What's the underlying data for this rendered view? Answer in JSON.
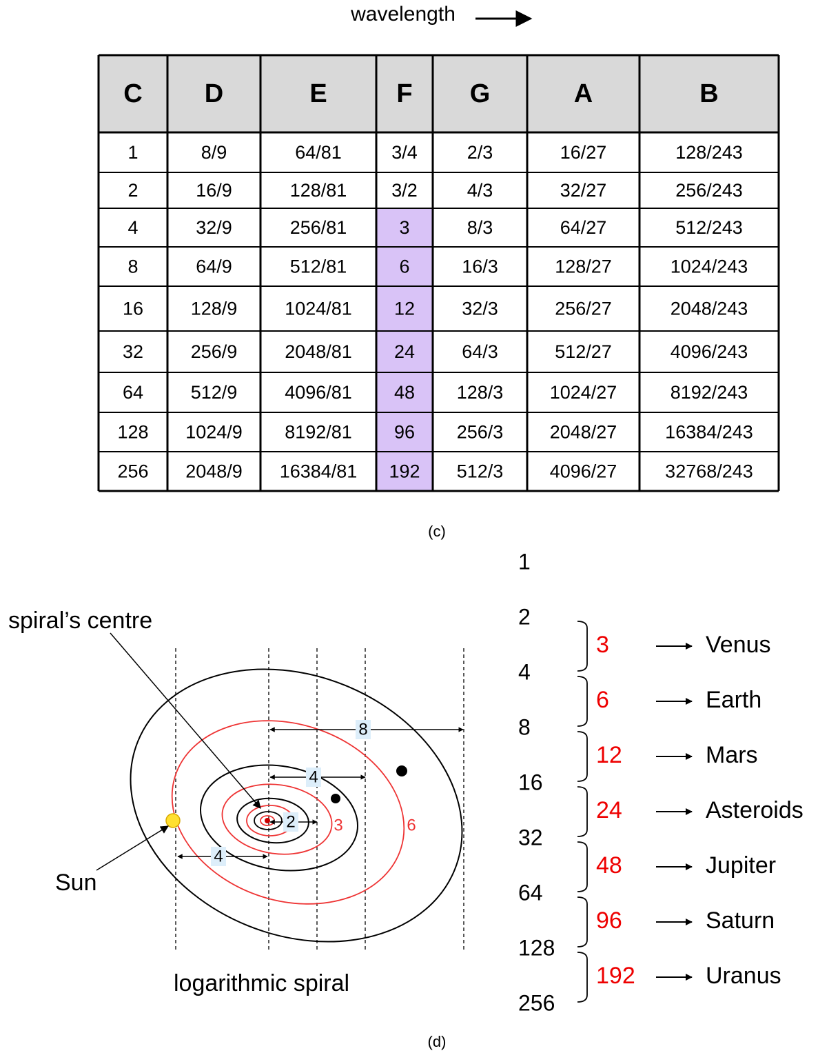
{
  "wavelength_label": "wavelength",
  "table": {
    "header": [
      "C",
      "D",
      "E",
      "F",
      "G",
      "A",
      "B"
    ],
    "rows": [
      [
        "1",
        "8/9",
        "64/81",
        "3/4",
        "2/3",
        "16/27",
        "128/243"
      ],
      [
        "2",
        "16/9",
        "128/81",
        "3/2",
        "4/3",
        "32/27",
        "256/243"
      ],
      [
        "4",
        "32/9",
        "256/81",
        "3",
        "8/3",
        "64/27",
        "512/243"
      ],
      [
        "8",
        "64/9",
        "512/81",
        "6",
        "16/3",
        "128/27",
        "1024/243"
      ],
      [
        "16",
        "128/9",
        "1024/81",
        "12",
        "32/3",
        "256/27",
        "2048/243"
      ],
      [
        "32",
        "256/9",
        "2048/81",
        "24",
        "64/3",
        "512/27",
        "4096/243"
      ],
      [
        "64",
        "512/9",
        "4096/81",
        "48",
        "128/3",
        "1024/27",
        "8192/243"
      ],
      [
        "128",
        "1024/9",
        "8192/81",
        "96",
        "256/3",
        "2048/27",
        "16384/243"
      ],
      [
        "256",
        "2048/9",
        "16384/81",
        "192",
        "512/3",
        "4096/27",
        "32768/243"
      ]
    ]
  },
  "caption_c": "(c)",
  "spiral": {
    "centre_label": "spiral’s centre",
    "sun_label": "Sun",
    "title": "logarithmic spiral",
    "distances": [
      "8",
      "4",
      "2",
      "4"
    ],
    "orbit_labels": [
      "3",
      "6"
    ]
  },
  "sequence": [
    "1",
    "2",
    "4",
    "8",
    "16",
    "32",
    "64",
    "128",
    "256"
  ],
  "planets": [
    {
      "value": "3",
      "name": "Venus"
    },
    {
      "value": "6",
      "name": "Earth"
    },
    {
      "value": "12",
      "name": "Mars"
    },
    {
      "value": "24",
      "name": "Asteroids"
    },
    {
      "value": "48",
      "name": "Jupiter"
    },
    {
      "value": "96",
      "name": "Saturn"
    },
    {
      "value": "192",
      "name": "Uranus"
    }
  ],
  "caption_d": "(d)"
}
